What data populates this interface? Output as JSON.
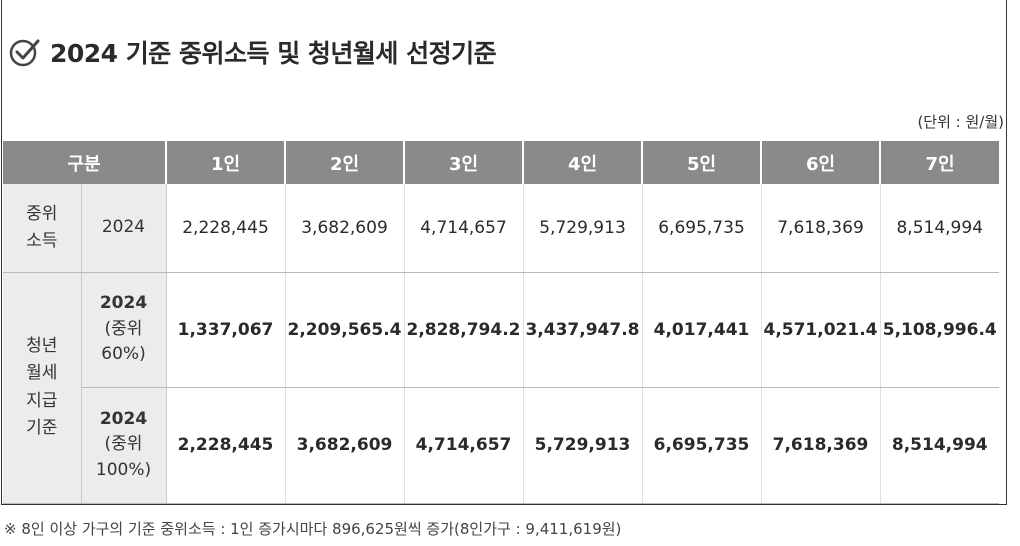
{
  "title": "2024 기준 중위소득 및 청년월세 선정기준",
  "unit": "(단위 : 원/월)",
  "header": {
    "category": "구분",
    "columns": [
      "1인",
      "2인",
      "3인",
      "4인",
      "5인",
      "6인",
      "7인"
    ]
  },
  "rows": {
    "median": {
      "category_line1": "중위",
      "category_line2": "소득",
      "sub": "2024",
      "values": [
        "2,228,445",
        "3,682,609",
        "4,714,657",
        "5,729,913",
        "6,695,735",
        "7,618,369",
        "8,514,994"
      ]
    },
    "youth_category": {
      "line1": "청년",
      "line2": "월세",
      "line3": "지급",
      "line4": "기준"
    },
    "youth60": {
      "sub_line1": "2024",
      "sub_line2": "(중위",
      "sub_line3": "60%)",
      "values": [
        "1,337,067",
        "2,209,565.4",
        "2,828,794.2",
        "3,437,947.8",
        "4,017,441",
        "4,571,021.4",
        "5,108,996.4"
      ]
    },
    "youth100": {
      "sub_line1": "2024",
      "sub_line2": "(중위",
      "sub_line3": "100%)",
      "values": [
        "2,228,445",
        "3,682,609",
        "4,714,657",
        "5,729,913",
        "6,695,735",
        "7,618,369",
        "8,514,994"
      ]
    }
  },
  "footnote": "※ 8인 이상 가구의 기준 중위소득 : 1인 증가시마다 896,625원씩 증가(8인가구 : 9,411,619원)",
  "icon": "check-circle-icon"
}
